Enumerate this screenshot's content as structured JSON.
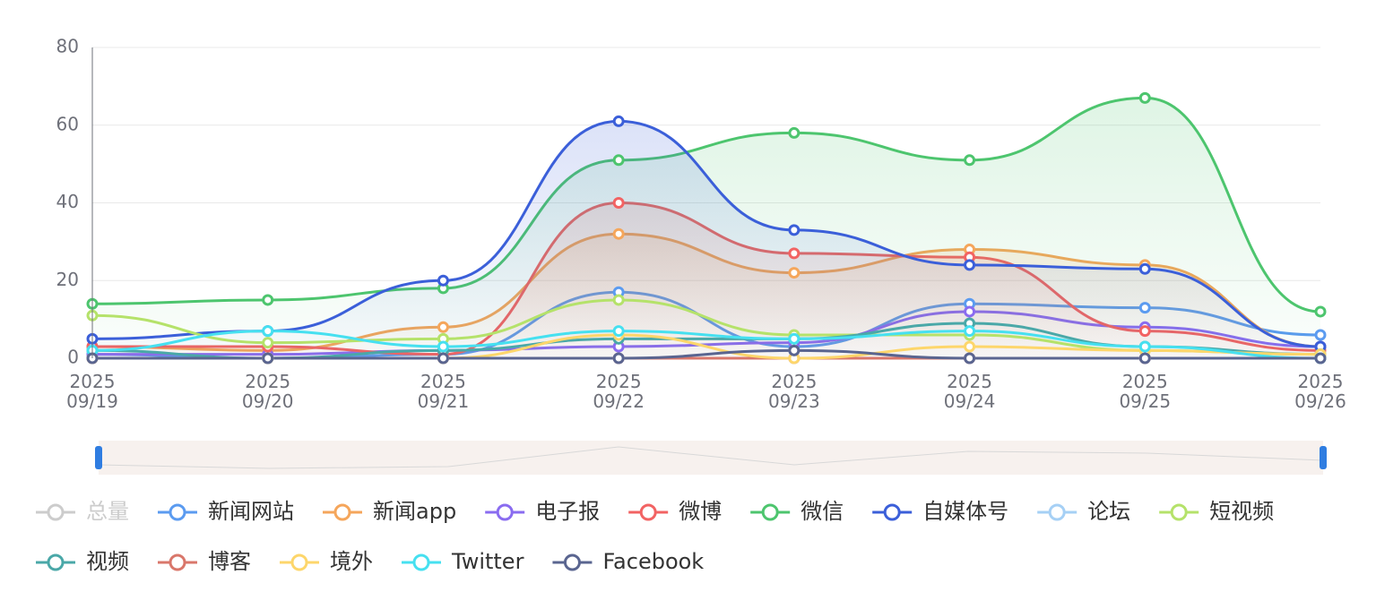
{
  "chart_data": {
    "type": "line",
    "smooth": true,
    "categories": [
      "2025\n09/19",
      "2025\n09/20",
      "2025\n09/21",
      "2025\n09/22",
      "2025\n09/23",
      "2025\n09/24",
      "2025\n09/25",
      "2025\n09/26"
    ],
    "ylim": [
      0,
      80
    ],
    "yticks": [
      0,
      20,
      40,
      60,
      80
    ],
    "grid": true,
    "legend": "bottom",
    "datazoom": true,
    "series": [
      {
        "name": "总量",
        "color": "#cccccc",
        "hidden": true,
        "values": [
          null,
          null,
          null,
          null,
          null,
          null,
          null,
          null
        ]
      },
      {
        "name": "新闻网站",
        "color": "#5b9bf0",
        "values": [
          1,
          0,
          1,
          17,
          3,
          14,
          13,
          6
        ]
      },
      {
        "name": "新闻app",
        "color": "#f5a65b",
        "area": true,
        "values": [
          3,
          2,
          8,
          32,
          22,
          28,
          24,
          3
        ]
      },
      {
        "name": "电子报",
        "color": "#8a6cf0",
        "values": [
          1,
          1,
          2,
          3,
          4,
          12,
          8,
          3
        ]
      },
      {
        "name": "微博",
        "color": "#f26363",
        "area": true,
        "values": [
          3,
          3,
          1,
          40,
          27,
          26,
          7,
          2
        ]
      },
      {
        "name": "微信",
        "color": "#4dc56e",
        "area": true,
        "values": [
          14,
          15,
          18,
          51,
          58,
          51,
          67,
          12
        ]
      },
      {
        "name": "自媒体号",
        "color": "#3b5fd9",
        "area": true,
        "values": [
          5,
          7,
          20,
          61,
          33,
          24,
          23,
          3
        ]
      },
      {
        "name": "论坛",
        "color": "#a6d0f5",
        "values": [
          0,
          0,
          0,
          0,
          0,
          0,
          0,
          0
        ]
      },
      {
        "name": "短视频",
        "color": "#b5e26a",
        "values": [
          11,
          4,
          5,
          15,
          6,
          6,
          2,
          1
        ]
      },
      {
        "name": "视频",
        "color": "#4aa8a8",
        "values": [
          2,
          0,
          2,
          5,
          5,
          9,
          3,
          1
        ]
      },
      {
        "name": "博客",
        "color": "#d9776b",
        "values": [
          0,
          0,
          0,
          0,
          0,
          0,
          0,
          0
        ]
      },
      {
        "name": "境外",
        "color": "#fdd66b",
        "values": [
          0,
          0,
          0,
          6,
          0,
          3,
          2,
          1
        ]
      },
      {
        "name": "Twitter",
        "color": "#46e0f0",
        "values": [
          2,
          7,
          3,
          7,
          5,
          7,
          3,
          0
        ]
      },
      {
        "name": "Facebook",
        "color": "#5a6590",
        "values": [
          0,
          0,
          0,
          0,
          2,
          0,
          0,
          0
        ]
      }
    ]
  }
}
